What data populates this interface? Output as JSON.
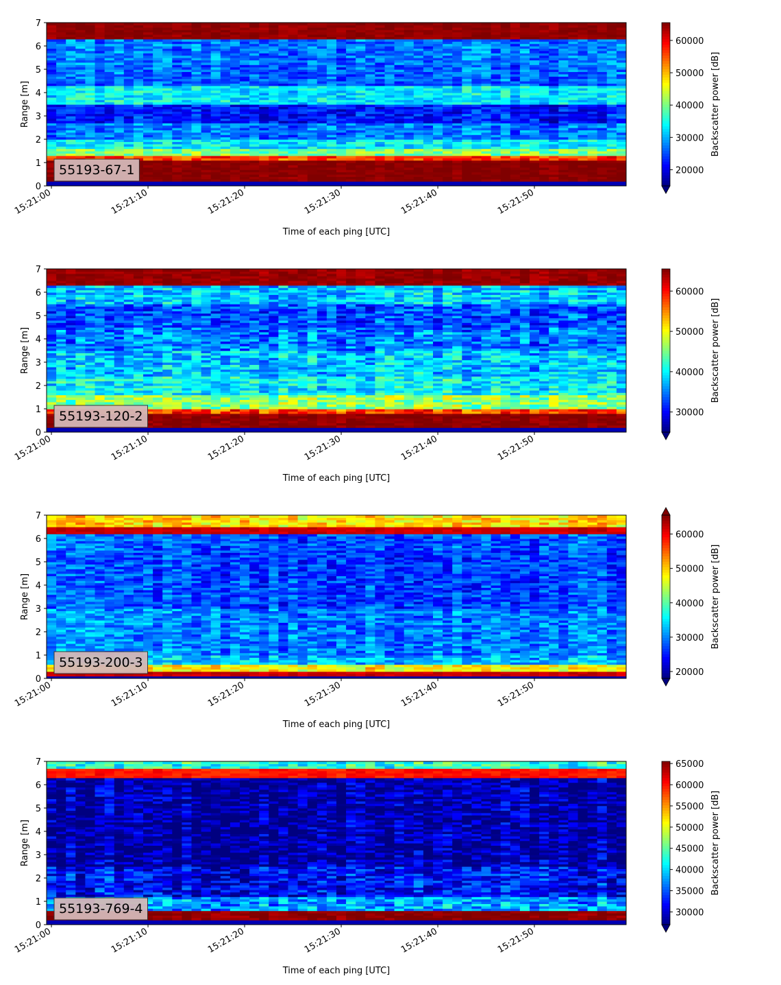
{
  "figure": {
    "xlabel": "Time of each ping [UTC]",
    "ylabel": "Range [m]",
    "colorbar_label": "Backscatter power [dB]",
    "colormap": "jet",
    "label_box_color": "#d4b8b8"
  },
  "chart_data": [
    {
      "type": "heatmap",
      "label": "55193-67-1",
      "xlabel": "Time of each ping [UTC]",
      "ylabel": "Range [m]",
      "x_ticks": [
        "15:21:00",
        "15:21:10",
        "15:21:20",
        "15:21:30",
        "15:21:40",
        "15:21:50"
      ],
      "y_ticks": [
        0,
        1,
        2,
        3,
        4,
        5,
        6,
        7
      ],
      "ylim": [
        0,
        7
      ],
      "time_range_s": [
        -0.5,
        59.5
      ],
      "colorbar": {
        "label": "Backscatter power [dB]",
        "ticks": [
          20000,
          30000,
          40000,
          50000,
          60000
        ],
        "range": [
          15000,
          65500
        ],
        "extend": "min"
      },
      "bands": [
        {
          "range_m": [
            0.2,
            1.1
          ],
          "value": 65000
        },
        {
          "range_m": [
            1.1,
            1.3
          ],
          "value": 56000
        },
        {
          "range_m": [
            1.3,
            1.6
          ],
          "value": 40000
        },
        {
          "range_m": [
            1.6,
            2.0
          ],
          "value": 33000
        },
        {
          "range_m": [
            2.0,
            2.7
          ],
          "value": 27000
        },
        {
          "range_m": [
            2.7,
            3.5
          ],
          "value": 22000
        },
        {
          "range_m": [
            3.5,
            4.3
          ],
          "value": 33000
        },
        {
          "range_m": [
            4.3,
            5.2
          ],
          "value": 26000
        },
        {
          "range_m": [
            5.2,
            6.3
          ],
          "value": 27000
        },
        {
          "range_m": [
            6.3,
            7.0
          ],
          "value": 64500
        }
      ]
    },
    {
      "type": "heatmap",
      "label": "55193-120-2",
      "xlabel": "Time of each ping [UTC]",
      "ylabel": "Range [m]",
      "x_ticks": [
        "15:21:00",
        "15:21:10",
        "15:21:20",
        "15:21:30",
        "15:21:40",
        "15:21:50"
      ],
      "y_ticks": [
        0,
        1,
        2,
        3,
        4,
        5,
        6,
        7
      ],
      "ylim": [
        0,
        7
      ],
      "time_range_s": [
        -0.5,
        59.5
      ],
      "colorbar": {
        "label": "Backscatter power [dB]",
        "ticks": [
          30000,
          40000,
          50000,
          60000
        ],
        "range": [
          25000,
          65500
        ],
        "extend": "min"
      },
      "bands": [
        {
          "range_m": [
            0.2,
            0.8
          ],
          "value": 65000
        },
        {
          "range_m": [
            0.8,
            1.0
          ],
          "value": 58000
        },
        {
          "range_m": [
            1.0,
            1.6
          ],
          "value": 46000
        },
        {
          "range_m": [
            1.6,
            2.4
          ],
          "value": 40000
        },
        {
          "range_m": [
            2.4,
            3.5
          ],
          "value": 38000
        },
        {
          "range_m": [
            3.5,
            4.5
          ],
          "value": 35000
        },
        {
          "range_m": [
            4.5,
            5.5
          ],
          "value": 33000
        },
        {
          "range_m": [
            5.5,
            6.3
          ],
          "value": 38000
        },
        {
          "range_m": [
            6.3,
            7.0
          ],
          "value": 64500
        }
      ]
    },
    {
      "type": "heatmap",
      "label": "55193-200-3",
      "xlabel": "Time of each ping [UTC]",
      "ylabel": "Range [m]",
      "x_ticks": [
        "15:21:00",
        "15:21:10",
        "15:21:20",
        "15:21:30",
        "15:21:40",
        "15:21:50"
      ],
      "y_ticks": [
        0,
        1,
        2,
        3,
        4,
        5,
        6,
        7
      ],
      "ylim": [
        0,
        7
      ],
      "time_range_s": [
        -0.5,
        59.5
      ],
      "colorbar": {
        "label": "Backscatter power [dB]",
        "ticks": [
          20000,
          30000,
          40000,
          50000,
          60000
        ],
        "range": [
          18000,
          65500
        ],
        "extend": "both"
      },
      "bands": [
        {
          "range_m": [
            0.1,
            0.35
          ],
          "value": 62000
        },
        {
          "range_m": [
            0.35,
            0.6
          ],
          "value": 48000
        },
        {
          "range_m": [
            0.6,
            1.0
          ],
          "value": 33000
        },
        {
          "range_m": [
            1.0,
            3.0
          ],
          "value": 30000
        },
        {
          "range_m": [
            3.0,
            5.5
          ],
          "value": 27000
        },
        {
          "range_m": [
            5.5,
            6.2
          ],
          "value": 28000
        },
        {
          "range_m": [
            6.2,
            6.5
          ],
          "value": 62000
        },
        {
          "range_m": [
            6.5,
            7.0
          ],
          "value": 49000
        }
      ]
    },
    {
      "type": "heatmap",
      "label": "55193-769-4",
      "xlabel": "Time of each ping [UTC]",
      "ylabel": "Range [m]",
      "x_ticks": [
        "15:21:00",
        "15:21:10",
        "15:21:20",
        "15:21:30",
        "15:21:40",
        "15:21:50"
      ],
      "y_ticks": [
        0,
        1,
        2,
        3,
        4,
        5,
        6,
        7
      ],
      "ylim": [
        0,
        7
      ],
      "time_range_s": [
        -0.5,
        59.5
      ],
      "colorbar": {
        "label": "Backscatter power [dB]",
        "ticks": [
          30000,
          35000,
          40000,
          45000,
          50000,
          55000,
          60000,
          65000
        ],
        "range": [
          27000,
          65500
        ],
        "extend": "min"
      },
      "bands": [
        {
          "range_m": [
            0.2,
            0.6
          ],
          "value": 65000
        },
        {
          "range_m": [
            0.6,
            1.2
          ],
          "value": 38000
        },
        {
          "range_m": [
            1.2,
            2.5
          ],
          "value": 32000
        },
        {
          "range_m": [
            2.5,
            6.3
          ],
          "value": 28500
        },
        {
          "range_m": [
            6.3,
            6.7
          ],
          "value": 60000
        },
        {
          "range_m": [
            6.7,
            7.0
          ],
          "value": 43000
        }
      ]
    }
  ]
}
